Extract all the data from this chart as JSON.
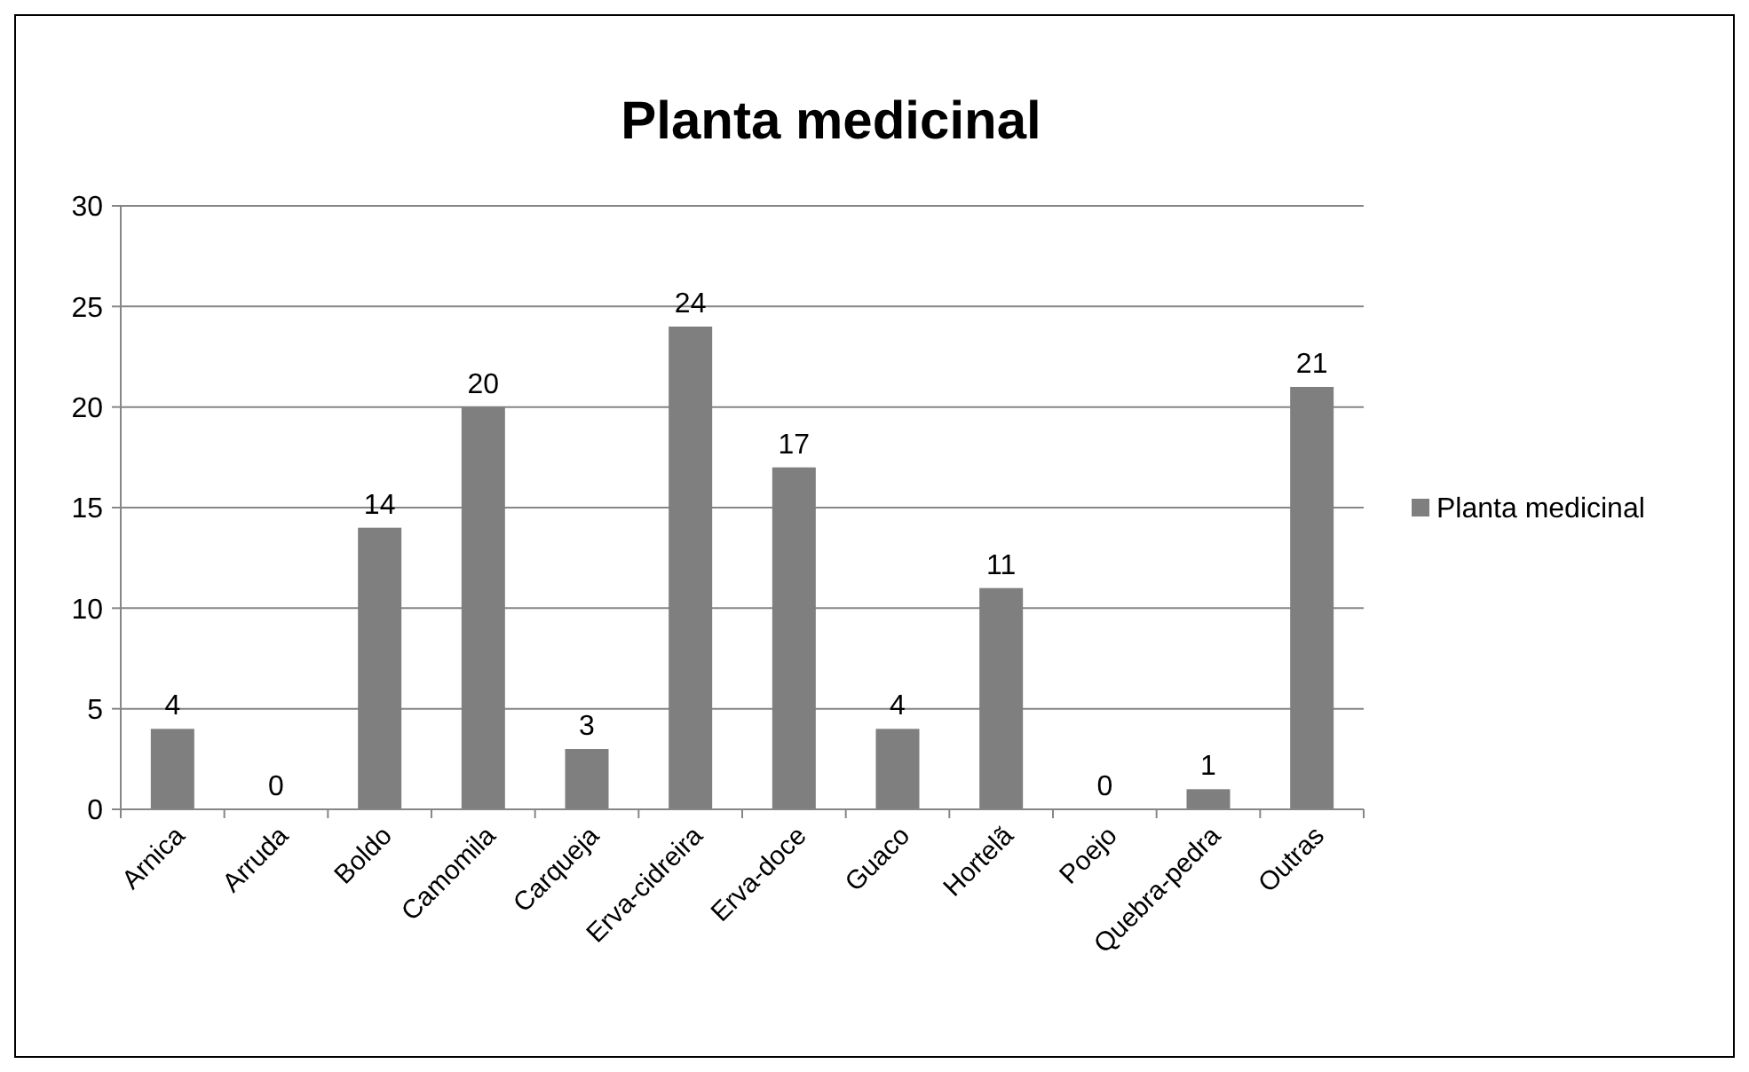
{
  "chart_data": {
    "type": "bar",
    "title": "Planta medicinal",
    "categories": [
      "Arnica",
      "Arruda",
      "Boldo",
      "Camomila",
      "Carqueja",
      "Erva-cidreira",
      "Erva-doce",
      "Guaco",
      "Hortelã",
      "Poejo",
      "Quebra-pedra",
      "Outras"
    ],
    "series": [
      {
        "name": "Planta medicinal",
        "color": "#7f7f7f",
        "values": [
          4,
          0,
          14,
          20,
          3,
          24,
          17,
          4,
          11,
          0,
          1,
          21
        ]
      }
    ],
    "ylim": [
      0,
      30
    ],
    "yticks": [
      0,
      5,
      10,
      15,
      20,
      25,
      30
    ],
    "grid": "y",
    "legend": "right",
    "data_labels": true
  }
}
